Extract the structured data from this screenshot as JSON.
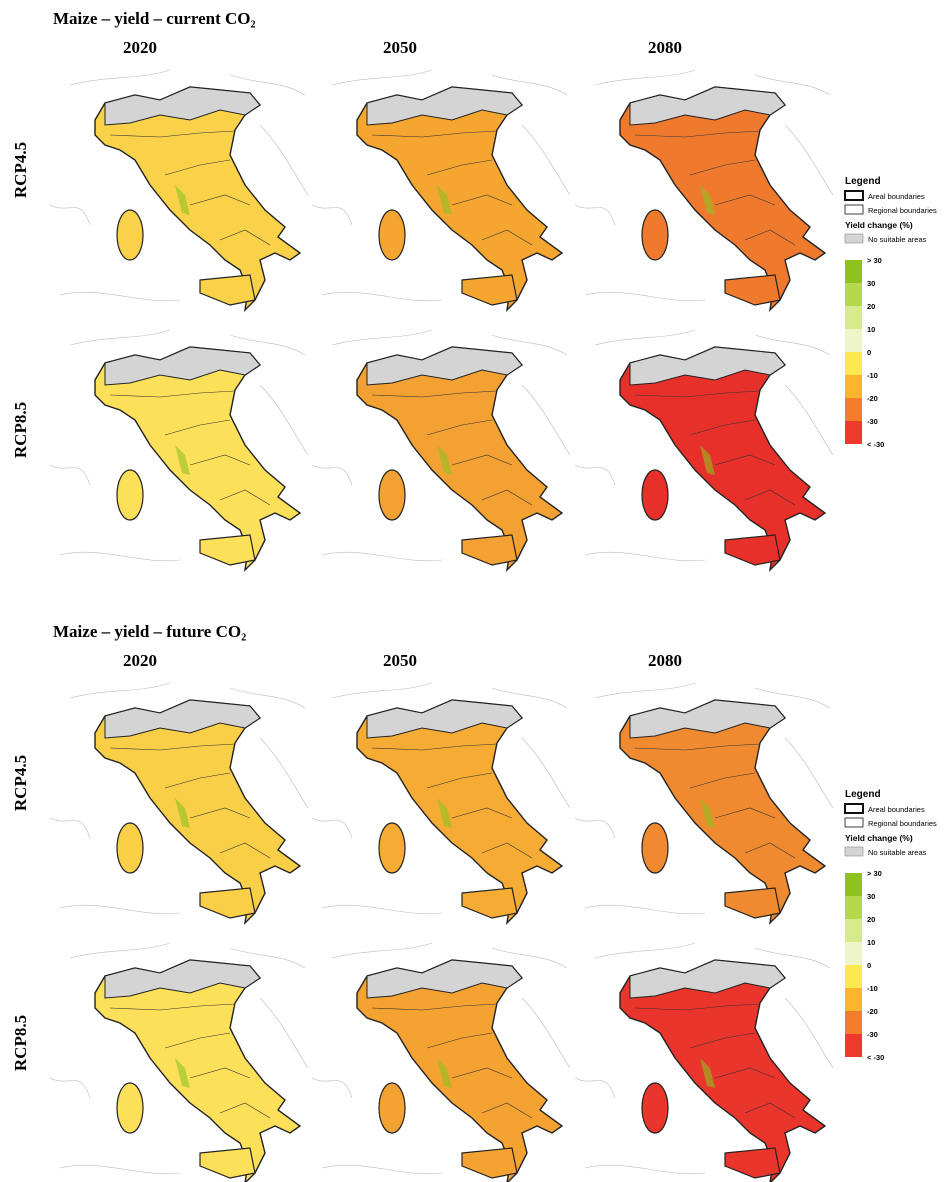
{
  "panels": [
    {
      "title": "Maize – yield – current CO₂",
      "columns": [
        "2020",
        "2050",
        "2080"
      ],
      "rows": [
        "RCP4.5",
        "RCP8.5"
      ],
      "legend": {
        "title": "Legend",
        "boundaries": [
          "Areal boundaries",
          "Regional boundaries"
        ],
        "scale_title": "Yield change (%)",
        "no_data": "No suitable areas",
        "scale_labels": [
          "> 30",
          "30",
          "20",
          "10",
          "0",
          "-10",
          "-20",
          "-30",
          "< -30"
        ],
        "scale_colors": [
          "#8dc21f",
          "#b5d94a",
          "#d6ea8f",
          "#eef5c8",
          "#fde94f",
          "#f9b62b",
          "#f47c2b",
          "#ee3a2e"
        ]
      }
    },
    {
      "title": "Maize – yield – future CO₂",
      "columns": [
        "2020",
        "2050",
        "2080"
      ],
      "rows": [
        "RCP4.5",
        "RCP8.5"
      ],
      "legend": {
        "title": "Legend",
        "boundaries": [
          "Areal boundaries",
          "Regional boundaries"
        ],
        "scale_title": "Yield change (%)",
        "no_data": "No suitable areas",
        "scale_labels": [
          "> 30",
          "30",
          "20",
          "10",
          "0",
          "-10",
          "-20",
          "-30",
          "< -30"
        ],
        "scale_colors": [
          "#8dc21f",
          "#b5d94a",
          "#d6ea8f",
          "#eef5c8",
          "#fde94f",
          "#f9b62b",
          "#f47c2b",
          "#ee3a2e"
        ]
      }
    }
  ]
}
